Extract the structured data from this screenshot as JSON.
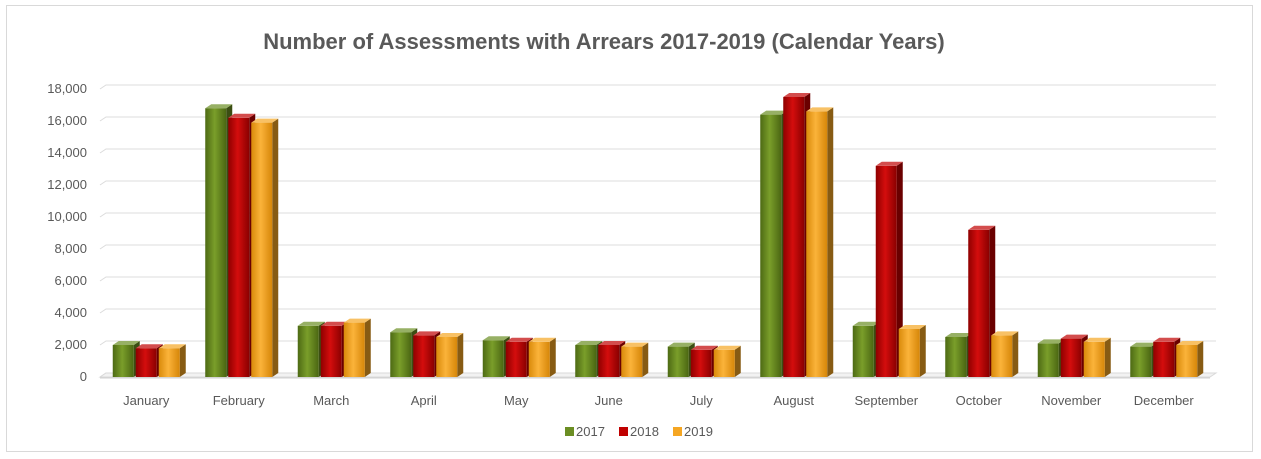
{
  "chart_data": {
    "type": "bar",
    "title": "Number of Assessments with Arrears 2017-2019 (Calendar Years)",
    "xlabel": "",
    "ylabel": "",
    "ylim": [
      0,
      18000
    ],
    "yticks": [
      "0",
      "2,000",
      "4,000",
      "6,000",
      "8,000",
      "10,000",
      "12,000",
      "14,000",
      "16,000",
      "18,000"
    ],
    "categories": [
      "January",
      "February",
      "March",
      "April",
      "May",
      "June",
      "July",
      "August",
      "September",
      "October",
      "November",
      "December"
    ],
    "series": [
      {
        "name": "2017",
        "color": "#6b8e23",
        "values": [
          2000,
          16800,
          3200,
          2800,
          2300,
          2000,
          1900,
          16400,
          3200,
          2500,
          2100,
          1900
        ]
      },
      {
        "name": "2018",
        "color": "#c00000",
        "values": [
          1800,
          16200,
          3200,
          2600,
          2200,
          2000,
          1700,
          17500,
          13200,
          9200,
          2400,
          2200
        ]
      },
      {
        "name": "2019",
        "color": "#f5a623",
        "values": [
          1800,
          15900,
          3400,
          2500,
          2200,
          1900,
          1700,
          16600,
          3000,
          2600,
          2200,
          2000
        ]
      }
    ],
    "grid": true,
    "legend_position": "bottom"
  }
}
